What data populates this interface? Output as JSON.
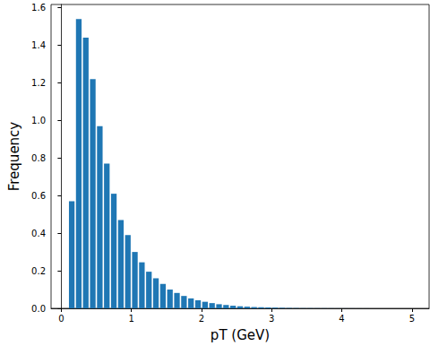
{
  "chart_data": {
    "type": "histogram",
    "xlabel": "pT (GeV)",
    "ylabel": "Frequency",
    "color": "#1f77b4",
    "bins": [
      0.1,
      0.2,
      0.3,
      0.4,
      0.5,
      0.6,
      0.7,
      0.8,
      0.9,
      1.0,
      1.1,
      1.2,
      1.3,
      1.4,
      1.5,
      1.6,
      1.7,
      1.8,
      1.9,
      2.0,
      2.1,
      2.2,
      2.3,
      2.4,
      2.5,
      2.6,
      2.7,
      2.8,
      2.9,
      3.0,
      3.1,
      3.2,
      3.3,
      3.4,
      3.5,
      3.6,
      3.7,
      3.8,
      3.9,
      4.0,
      4.1,
      4.2,
      4.3,
      4.4,
      4.5,
      4.6,
      4.7,
      4.8,
      4.9,
      5.0
    ],
    "values": [
      0.57,
      1.54,
      1.44,
      1.22,
      0.97,
      0.77,
      0.61,
      0.47,
      0.39,
      0.3,
      0.245,
      0.195,
      0.16,
      0.13,
      0.1,
      0.082,
      0.066,
      0.053,
      0.043,
      0.035,
      0.028,
      0.022,
      0.018,
      0.014,
      0.011,
      0.009,
      0.007,
      0.006,
      0.005,
      0.004,
      0.003,
      0.002,
      0.0015,
      0.001,
      0.001,
      0.0008,
      0.0006,
      0.0005,
      0.0004,
      0.0003,
      0.0003,
      0.0002,
      0.0002,
      0.0001,
      0.0001,
      0.0001,
      0.0001,
      0.0001,
      0.0001
    ],
    "xlim": [
      -0.145,
      5.245
    ],
    "xticks": [
      0,
      1,
      2,
      3,
      4,
      5
    ],
    "ylim": [
      0,
      1.617
    ],
    "yticks": [
      {
        "value": 0,
        "label": "0.0"
      },
      {
        "value": 0.2,
        "label": "0.2"
      },
      {
        "value": 0.4,
        "label": "0.4"
      },
      {
        "value": 0.6,
        "label": "0.6"
      },
      {
        "value": 0.8,
        "label": "0.8"
      },
      {
        "value": 1.0,
        "label": "1.0"
      },
      {
        "value": 1.2,
        "label": "1.2"
      },
      {
        "value": 1.4,
        "label": "1.4"
      },
      {
        "value": 1.6,
        "label": "1.6"
      }
    ],
    "grid": false
  }
}
